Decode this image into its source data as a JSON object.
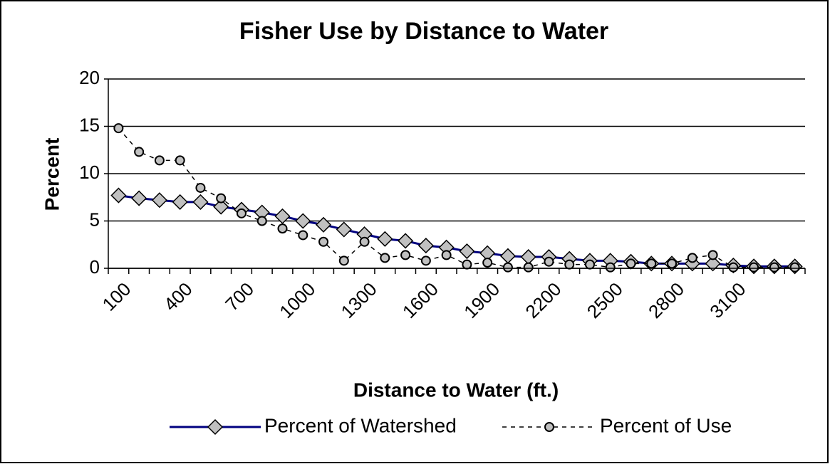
{
  "chart_data": {
    "type": "line",
    "title": "Fisher Use by Distance to Water",
    "x_label": "Distance to Water (ft.)",
    "y_label": "Percent",
    "categories": [
      "100",
      null,
      null,
      "400",
      null,
      null,
      "700",
      null,
      null,
      "1000",
      null,
      null,
      "1300",
      null,
      null,
      "1600",
      null,
      null,
      "1900",
      null,
      null,
      "2200",
      null,
      null,
      "2500",
      null,
      null,
      "2800",
      null,
      null,
      "3100",
      null,
      null,
      null
    ],
    "series": [
      {
        "name": "Percent of Watershed",
        "color": "#000080",
        "marker_color": "#c0c0c0",
        "style": "solid",
        "marker": "diamond",
        "values": [
          7.7,
          7.4,
          7.2,
          7.0,
          7.0,
          6.5,
          6.2,
          5.9,
          5.5,
          5.0,
          4.6,
          4.1,
          3.6,
          3.1,
          2.9,
          2.4,
          2.2,
          1.8,
          1.6,
          1.3,
          1.2,
          1.2,
          1.0,
          0.8,
          0.8,
          0.7,
          0.5,
          0.5,
          0.5,
          0.5,
          0.3,
          0.2,
          0.2,
          0.2
        ]
      },
      {
        "name": "Percent of Use",
        "color": "#000000",
        "marker_color": "#c0c0c0",
        "style": "dashed",
        "marker": "circle",
        "values": [
          14.8,
          12.3,
          11.4,
          11.4,
          8.5,
          7.4,
          5.8,
          5.0,
          4.2,
          3.5,
          2.8,
          0.8,
          2.8,
          1.1,
          1.4,
          0.8,
          1.4,
          0.4,
          0.6,
          0.1,
          0.1,
          0.7,
          0.4,
          0.4,
          0.1,
          0.5,
          0.5,
          0.5,
          1.1,
          1.4,
          0.1,
          0.1,
          0.1,
          0.1
        ]
      }
    ],
    "ylim": [
      0,
      20
    ],
    "yticks": [
      0,
      5,
      10,
      15,
      20
    ],
    "grid": true,
    "legend": "bottom"
  }
}
